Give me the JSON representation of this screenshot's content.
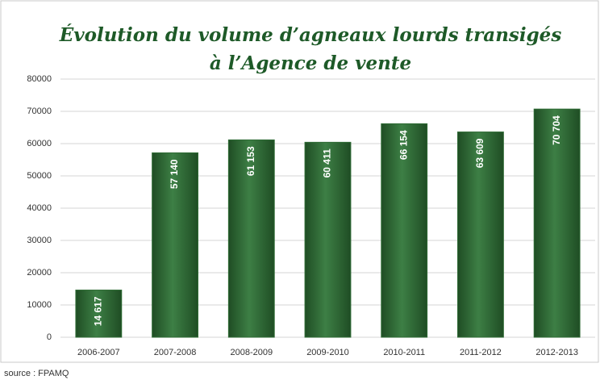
{
  "chart_data": {
    "type": "bar",
    "title": [
      "Évolution du volume d’agneaux lourds transigés",
      "à l’Agence de vente"
    ],
    "categories": [
      "2006-2007",
      "2007-2008",
      "2008-2009",
      "2009-2010",
      "2010-2011",
      "2011-2012",
      "2012-2013"
    ],
    "values": [
      14617,
      57140,
      61153,
      60411,
      66154,
      63609,
      70704
    ],
    "value_labels": [
      "14 617",
      "57 140",
      "61 153",
      "60 411",
      "66 154",
      "63 609",
      "70 704"
    ],
    "color": "#2f6b35",
    "ylim": [
      0,
      80000
    ],
    "yticks": [
      0,
      10000,
      20000,
      30000,
      40000,
      50000,
      60000,
      70000,
      80000
    ],
    "grid": true,
    "source": "source : FPAMQ"
  }
}
